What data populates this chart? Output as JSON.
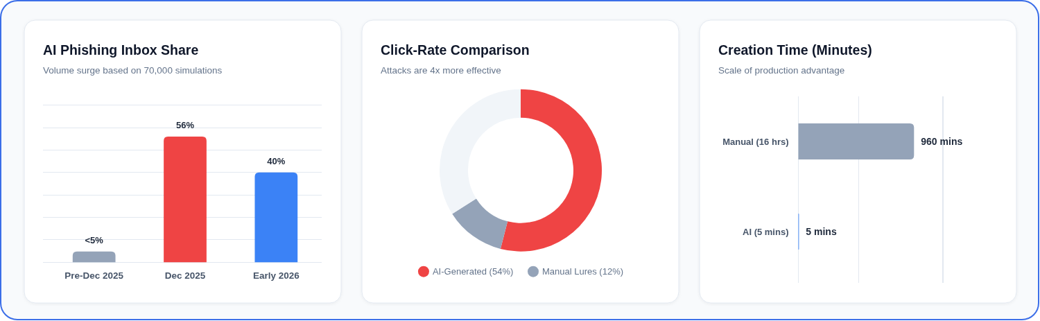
{
  "chart_data": [
    {
      "type": "bar",
      "title": "AI Phishing Inbox Share",
      "subtitle": "Volume surge based on 70,000 simulations",
      "categories": [
        "Pre-Dec 2025",
        "Dec 2025",
        "Early 2026"
      ],
      "values": [
        4.8,
        56,
        40
      ],
      "colors": [
        "#94a3b8",
        "#ef4444",
        "#3b82f6"
      ],
      "value_labels": [
        "<5%",
        "56%",
        "40%"
      ],
      "ylim": [
        0,
        70
      ],
      "yticks": [
        {
          "value": 0,
          "label": null
        },
        {
          "value": 10,
          "label": null
        },
        {
          "value": 20,
          "label": null
        },
        {
          "value": 30,
          "label": null
        },
        {
          "value": 40,
          "label": null
        },
        {
          "value": 50,
          "label": null
        },
        {
          "value": 60,
          "label": null
        },
        {
          "value": 70,
          "label": null
        }
      ],
      "grid": "y",
      "tick_labels": "x"
    },
    {
      "type": "donut",
      "title": "Click-Rate Comparison",
      "subtitle": "Attacks are 4x more effective",
      "categories": [
        "AI-Generated (54%)",
        "Manual Lures (12%)",
        null
      ],
      "values": [
        54,
        12,
        34
      ],
      "colors": [
        "#ef4444",
        "#94a3b8",
        "#f1f5f9"
      ],
      "legend": "bottom"
    },
    {
      "type": "bar",
      "orientation": "horizontal",
      "title": "Creation Time (Minutes)",
      "subtitle": "Scale of production advantage",
      "categories": [
        "Manual (16 hrs)",
        "AI (5 mins)"
      ],
      "values": [
        960,
        5
      ],
      "colors": [
        "#94a3b8",
        "#3b82f6"
      ],
      "value_labels": [
        "960 mins",
        "5 mins"
      ],
      "xlim": [
        0,
        1200
      ],
      "ref_lines": [
        {
          "axis": "x",
          "value": 500,
          "color": "#e2e8f0"
        },
        {
          "axis": "x",
          "value": 1200,
          "color": "#e2e8f0"
        }
      ],
      "tick_labels": "y"
    }
  ]
}
